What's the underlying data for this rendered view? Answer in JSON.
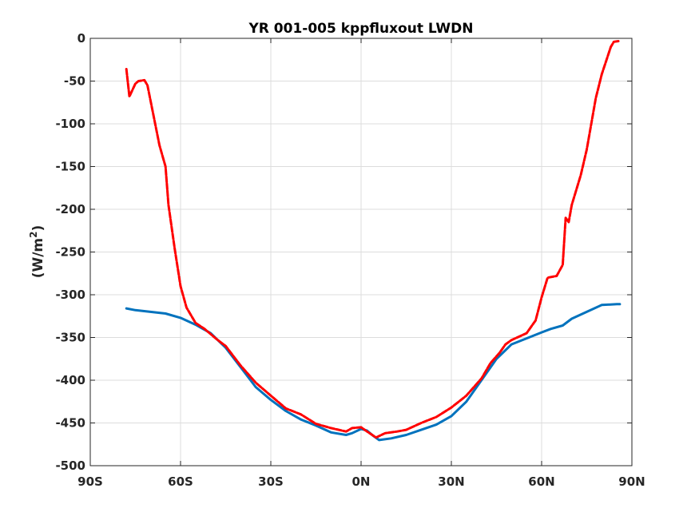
{
  "chart_data": {
    "type": "line",
    "title": "YR 001-005 kppfluxout LWDN",
    "xlabel": "",
    "ylabel": "(W/m",
    "ylabel_superscript": "2",
    "ylabel_suffix": ")",
    "xlim": [
      -90,
      90
    ],
    "ylim": [
      -500,
      0
    ],
    "grid": true,
    "x_ticks": [
      {
        "value": -90,
        "label": "90S"
      },
      {
        "value": -60,
        "label": "60S"
      },
      {
        "value": -30,
        "label": "30S"
      },
      {
        "value": 0,
        "label": "0N"
      },
      {
        "value": 30,
        "label": "30N"
      },
      {
        "value": 60,
        "label": "60N"
      },
      {
        "value": 90,
        "label": "90N"
      }
    ],
    "y_ticks": [
      {
        "value": 0,
        "label": "0"
      },
      {
        "value": -50,
        "label": "-50"
      },
      {
        "value": -100,
        "label": "-100"
      },
      {
        "value": -150,
        "label": "-150"
      },
      {
        "value": -200,
        "label": "-200"
      },
      {
        "value": -250,
        "label": "-250"
      },
      {
        "value": -300,
        "label": "-300"
      },
      {
        "value": -350,
        "label": "-350"
      },
      {
        "value": -400,
        "label": "-400"
      },
      {
        "value": -450,
        "label": "-450"
      },
      {
        "value": -500,
        "label": "-500"
      }
    ],
    "series": [
      {
        "color": "#0072BD",
        "style": "solid",
        "points": [
          [
            -78,
            -316
          ],
          [
            -75,
            -318
          ],
          [
            -70,
            -320
          ],
          [
            -65,
            -322
          ],
          [
            -60,
            -327
          ],
          [
            -55,
            -335
          ],
          [
            -50,
            -345
          ],
          [
            -45,
            -362
          ],
          [
            -40,
            -385
          ],
          [
            -35,
            -408
          ],
          [
            -30,
            -423
          ],
          [
            -25,
            -436
          ],
          [
            -20,
            -446
          ],
          [
            -15,
            -453
          ],
          [
            -10,
            -461
          ],
          [
            -5,
            -464
          ],
          [
            -3,
            -462
          ],
          [
            0,
            -457
          ],
          [
            2,
            -459
          ],
          [
            4,
            -465
          ],
          [
            6,
            -470
          ],
          [
            10,
            -468
          ],
          [
            15,
            -464
          ],
          [
            20,
            -458
          ],
          [
            25,
            -452
          ],
          [
            30,
            -442
          ],
          [
            35,
            -425
          ],
          [
            40,
            -400
          ],
          [
            45,
            -375
          ],
          [
            50,
            -358
          ],
          [
            55,
            -351
          ],
          [
            60,
            -344
          ],
          [
            63,
            -340
          ],
          [
            67,
            -336
          ],
          [
            70,
            -328
          ],
          [
            75,
            -320
          ],
          [
            80,
            -312
          ],
          [
            85,
            -311
          ],
          [
            86,
            -311
          ]
        ]
      },
      {
        "color": "#FF0000",
        "style": "dashed",
        "points": [
          [
            -78,
            -36
          ],
          [
            -77,
            -68
          ],
          [
            -75,
            -53
          ],
          [
            -74,
            -50
          ],
          [
            -72,
            -49
          ],
          [
            -71,
            -55
          ],
          [
            -69,
            -90
          ],
          [
            -67,
            -125
          ],
          [
            -65,
            -150
          ],
          [
            -64,
            -195
          ],
          [
            -62,
            -245
          ],
          [
            -60,
            -290
          ],
          [
            -58,
            -315
          ],
          [
            -55,
            -333
          ],
          [
            -52,
            -340
          ],
          [
            -48,
            -352
          ],
          [
            -45,
            -360
          ],
          [
            -40,
            -383
          ],
          [
            -35,
            -403
          ],
          [
            -30,
            -418
          ],
          [
            -25,
            -433
          ],
          [
            -20,
            -440
          ],
          [
            -15,
            -451
          ],
          [
            -10,
            -456
          ],
          [
            -5,
            -460
          ],
          [
            -3,
            -456
          ],
          [
            0,
            -455
          ],
          [
            2,
            -460
          ],
          [
            5,
            -467
          ],
          [
            8,
            -462
          ],
          [
            12,
            -460
          ],
          [
            15,
            -458
          ],
          [
            20,
            -450
          ],
          [
            25,
            -443
          ],
          [
            30,
            -432
          ],
          [
            35,
            -418
          ],
          [
            40,
            -398
          ],
          [
            43,
            -380
          ],
          [
            46,
            -368
          ],
          [
            48,
            -358
          ],
          [
            50,
            -353
          ],
          [
            55,
            -345
          ],
          [
            58,
            -330
          ],
          [
            60,
            -303
          ],
          [
            62,
            -280
          ],
          [
            65,
            -278
          ],
          [
            67,
            -265
          ],
          [
            68,
            -210
          ],
          [
            69,
            -215
          ],
          [
            70,
            -195
          ],
          [
            73,
            -160
          ],
          [
            75,
            -130
          ],
          [
            78,
            -70
          ],
          [
            80,
            -42
          ],
          [
            83,
            -10
          ],
          [
            84,
            -4
          ],
          [
            86,
            -3
          ]
        ]
      }
    ]
  }
}
